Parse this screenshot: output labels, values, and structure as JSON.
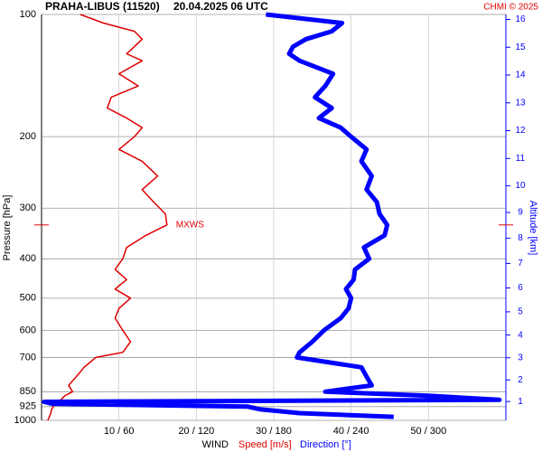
{
  "chart_data": {
    "type": "wind-profile",
    "title": "PRAHA-LIBUS (11520)",
    "subtitle": "20.04.2025 06 UTC",
    "credit": "CHMI © 2025",
    "y_label": "Pressure [hPa]",
    "y2_label": "Altitude [km]",
    "x_label": "WIND",
    "ylog": true,
    "ylim": [
      100,
      1000
    ],
    "yticks": [
      100,
      200,
      300,
      400,
      500,
      600,
      700,
      850,
      925,
      1000
    ],
    "y2lim": [
      0.1,
      16.2
    ],
    "y2ticks": [
      1,
      2,
      3,
      4,
      5,
      6,
      7,
      8,
      9,
      10,
      11,
      12,
      13,
      14,
      15,
      16
    ],
    "xlim": [
      0,
      60
    ],
    "x2lim": [
      0,
      360
    ],
    "xticks": [
      {
        "value": 10,
        "label": "10 / 60"
      },
      {
        "value": 20,
        "label": "20 / 120"
      },
      {
        "value": 30,
        "label": "30 / 180"
      },
      {
        "value": 40,
        "label": "40 / 240"
      },
      {
        "value": 50,
        "label": "50 / 300"
      }
    ],
    "levels": [
      100,
      105,
      110,
      115,
      120,
      125,
      130,
      140,
      150,
      160,
      170,
      180,
      190,
      200,
      215,
      230,
      250,
      270,
      290,
      310,
      330,
      350,
      375,
      400,
      425,
      450,
      475,
      500,
      530,
      560,
      600,
      640,
      680,
      700,
      740,
      780,
      820,
      850,
      870,
      890,
      900,
      910,
      925,
      940,
      960,
      980,
      1000
    ],
    "series": [
      {
        "name": "Speed [m/s]",
        "color": "#e00000",
        "axis": "x",
        "values": [
          5,
          8,
          12,
          13,
          12,
          11,
          13,
          10,
          12.5,
          9,
          8.5,
          11,
          13,
          12,
          10,
          13,
          15,
          13,
          14.5,
          16,
          16.2,
          13.5,
          11,
          10.5,
          9.5,
          11,
          9.5,
          11.5,
          10,
          9.5,
          10.5,
          11.5,
          10.5,
          7,
          5.5,
          4.5,
          3.5,
          4,
          3,
          2.5,
          2,
          1.8,
          1.5,
          1.3,
          1.2,
          1,
          0.8
        ]
      },
      {
        "name": "Direction [°]",
        "color": "#0000ff",
        "axis": "x2",
        "values": [
          174,
          233,
          225,
          205,
          195,
          192,
          200,
          226,
          220,
          212,
          225,
          215,
          232,
          240,
          252,
          248,
          256,
          252,
          260,
          262,
          268,
          266,
          250,
          254,
          243,
          242,
          236,
          240,
          238,
          232,
          219,
          210,
          200,
          198,
          248,
          252,
          256,
          220,
          300,
          355,
          2,
          8,
          160,
          170,
          200,
          273,
          null
        ]
      }
    ],
    "annotations": [
      {
        "text": "MXWS",
        "pressure": 330
      }
    ]
  }
}
